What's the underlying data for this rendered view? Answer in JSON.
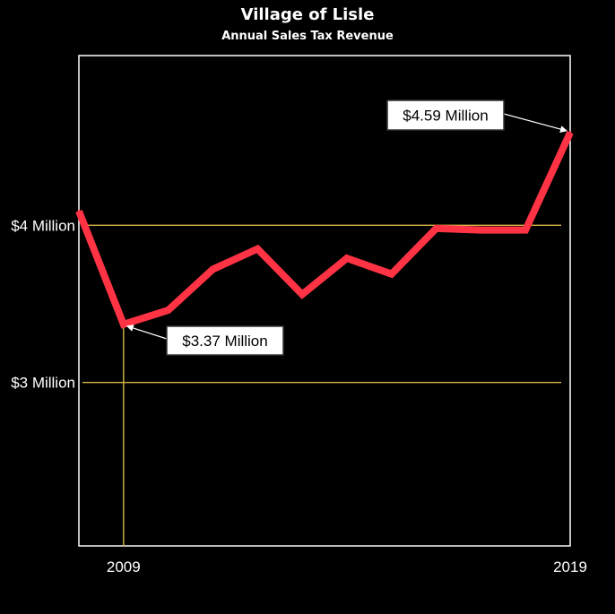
{
  "chart_data": {
    "type": "line",
    "title": "Village of Lisle",
    "subtitle": "Annual Sales Tax Revenue",
    "xlabel": "",
    "ylabel": "",
    "x": [
      2008,
      2009,
      2010,
      2011,
      2012,
      2013,
      2014,
      2015,
      2016,
      2017,
      2018,
      2019
    ],
    "series": [
      {
        "values": [
          4.09,
          3.37,
          3.46,
          3.72,
          3.85,
          3.56,
          3.79,
          3.69,
          3.98,
          3.97,
          3.97,
          4.59
        ]
      }
    ],
    "xlim": [
      2008,
      2019
    ],
    "ylim": [
      1.96,
      5.08
    ],
    "x_tick_labels": [
      "2009",
      "2019"
    ],
    "x_tick_values": [
      2009,
      2019
    ],
    "y_tick_labels": [
      "$3 Million",
      "$4 Million"
    ],
    "y_tick_values": [
      3,
      4
    ],
    "grid": "horizontal reference lines at $3 Million and $4 Million, vertical reference line at 2009",
    "annotations": [
      {
        "text": "$3.37 Million",
        "x": 2009,
        "y": 3.37
      },
      {
        "text": "$4.59 Million",
        "x": 2019,
        "y": 4.59
      }
    ],
    "legend": "none",
    "colors": {
      "line": "#ff3344",
      "gridline": "#d9b84a",
      "frame": "#ffffff",
      "background": "#000000",
      "callout_fill": "#ffffff",
      "callout_border": "#333333"
    }
  }
}
